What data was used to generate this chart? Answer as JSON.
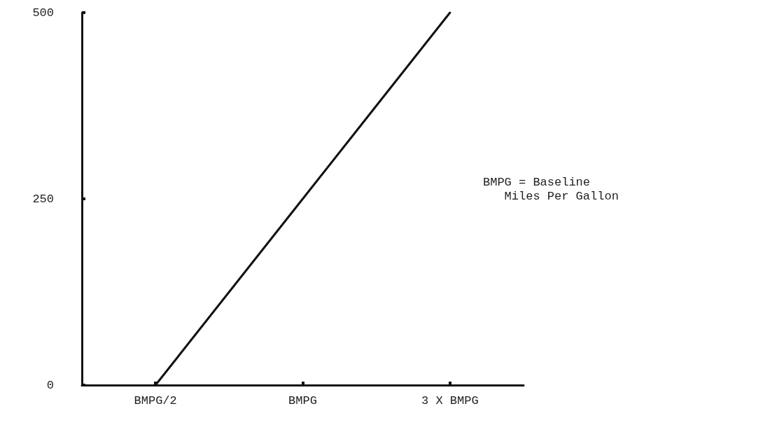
{
  "chart_data": {
    "type": "line",
    "categories": [
      "BMPG/2",
      "BMPG",
      "3 X BMPG"
    ],
    "values": [
      0,
      250,
      500
    ],
    "color": "#111111",
    "ylim": [
      0,
      500
    ],
    "yticks": [
      0,
      250,
      500
    ],
    "annotations": [
      "BMPG = Baseline\n   Miles Per Gallon"
    ],
    "grid": false,
    "marker": "none",
    "line_style": "solid"
  }
}
